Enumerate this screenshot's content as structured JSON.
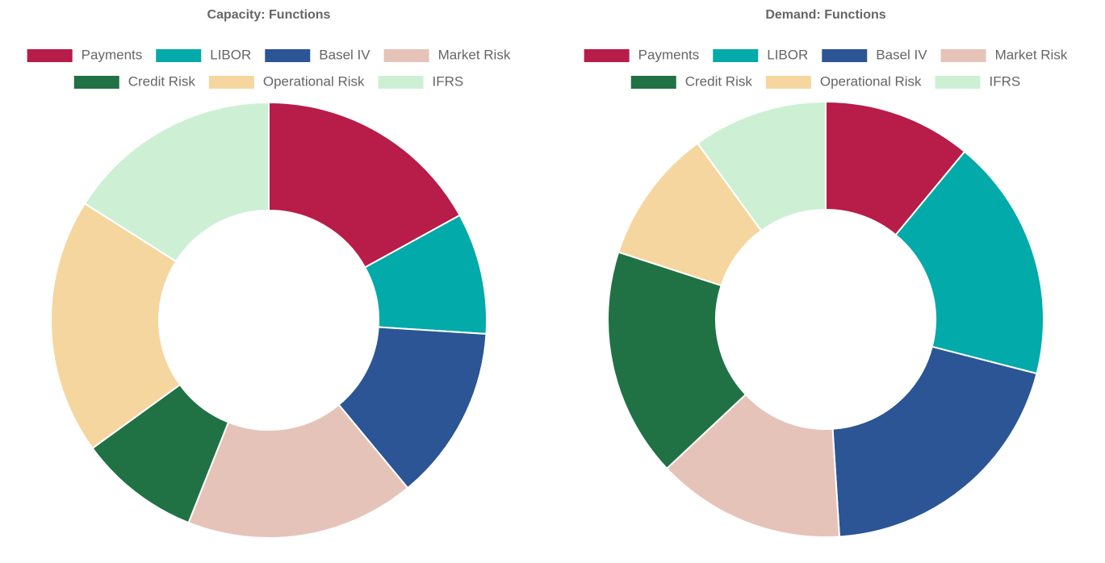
{
  "chart_data": [
    {
      "type": "doughnut",
      "title": "Capacity: Functions",
      "categories": [
        "Payments",
        "LIBOR",
        "Basel IV",
        "Market Risk",
        "Credit Risk",
        "Operational Risk",
        "IFRS"
      ],
      "values": [
        17,
        9,
        13,
        17,
        9,
        19,
        16
      ],
      "colors": [
        "#b81c48",
        "#02aaa9",
        "#2b5594",
        "#e6c3b9",
        "#207245",
        "#f5d69f",
        "#cdf0d4"
      ]
    },
    {
      "type": "doughnut",
      "title": "Demand: Functions",
      "categories": [
        "Payments",
        "LIBOR",
        "Basel IV",
        "Market Risk",
        "Credit Risk",
        "Operational Risk",
        "IFRS"
      ],
      "values": [
        11,
        18,
        20,
        14,
        17,
        10,
        10
      ],
      "colors": [
        "#b81c48",
        "#02aaa9",
        "#2b5594",
        "#e6c3b9",
        "#207245",
        "#f5d69f",
        "#cdf0d4"
      ]
    }
  ]
}
